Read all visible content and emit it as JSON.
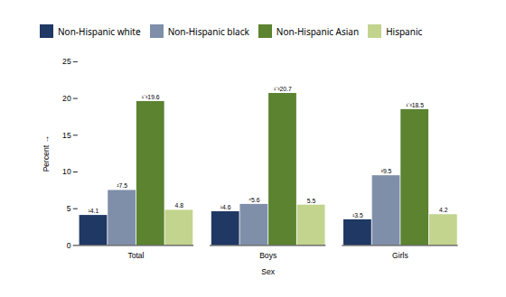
{
  "chart_data": {
    "type": "bar",
    "categories": [
      "Total",
      "Boys",
      "Girls"
    ],
    "xlabel": "Sex",
    "ylabel": "Percent",
    "series": [
      {
        "name": "Non-Hispanic white",
        "color": "#1f3864",
        "values": [
          4.1,
          4.6,
          3.5
        ],
        "value_labels": [
          "¹4.1",
          "¹4.6",
          "¹3.5"
        ]
      },
      {
        "name": "Non-Hispanic black",
        "color": "#7f8faa",
        "values": [
          7.5,
          5.6,
          9.5
        ],
        "value_labels": [
          "²7.5",
          "⁴5.6",
          "³9.5"
        ]
      },
      {
        "name": "Non-Hispanic Asian",
        "color": "#5b8330",
        "values": [
          19.6,
          20.7,
          18.5
        ],
        "value_labels": [
          "¹⁻³19.6",
          "¹⁻³20.7",
          "¹⁻³18.5"
        ]
      },
      {
        "name": "Hispanic",
        "color": "#c2d48e",
        "values": [
          4.8,
          5.5,
          4.2
        ],
        "value_labels": [
          "4.8",
          "5.5",
          "4.2"
        ]
      }
    ],
    "ylim": [
      0,
      25
    ],
    "yticks": [
      0,
      5,
      10,
      15,
      20,
      25
    ],
    "data_labels": true,
    "grid": false,
    "legend": "top"
  }
}
